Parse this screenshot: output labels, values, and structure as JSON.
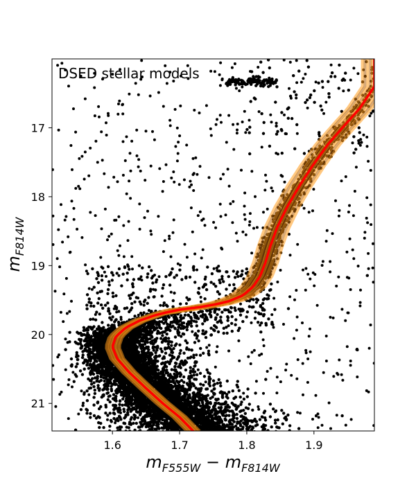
{
  "chart_data": {
    "type": "scatter",
    "title": "DSED stellar models",
    "xlabel": {
      "main": "m",
      "sub1": "F555W",
      "minus": " − ",
      "main2": "m",
      "sub2": "F814W"
    },
    "ylabel": {
      "main": "m",
      "sub": "F814W"
    },
    "xlim": [
      1.51,
      1.99
    ],
    "ylim": [
      21.4,
      16.0
    ],
    "y_inverted": true,
    "grid": false,
    "x_ticks": [
      1.6,
      1.7,
      1.8,
      1.9
    ],
    "x_tick_labels": [
      "1.6",
      "1.7",
      "1.8",
      "1.9"
    ],
    "y_ticks": [
      17,
      18,
      19,
      20,
      21
    ],
    "y_tick_labels": [
      "17",
      "18",
      "19",
      "20",
      "21"
    ],
    "colors": {
      "points": "#000000",
      "model_band": "#ff9a1a",
      "model_band_dark": "#b5650d",
      "best_fit": "#ff0000"
    },
    "series": [
      {
        "type": "isochrone",
        "color": "#ff0000",
        "points": [
          [
            1.72,
            21.4
          ],
          [
            1.7,
            21.2
          ],
          [
            1.675,
            21.0
          ],
          [
            1.65,
            20.78
          ],
          [
            1.625,
            20.55
          ],
          [
            1.607,
            20.35
          ],
          [
            1.6,
            20.18
          ],
          [
            1.605,
            20.03
          ],
          [
            1.62,
            19.9
          ],
          [
            1.64,
            19.8
          ],
          [
            1.67,
            19.7
          ],
          [
            1.7,
            19.64
          ],
          [
            1.74,
            19.59
          ],
          [
            1.77,
            19.53
          ],
          [
            1.795,
            19.43
          ],
          [
            1.81,
            19.3
          ],
          [
            1.82,
            19.15
          ],
          [
            1.828,
            18.95
          ],
          [
            1.835,
            18.72
          ],
          [
            1.845,
            18.45
          ],
          [
            1.86,
            18.15
          ],
          [
            1.878,
            17.85
          ],
          [
            1.898,
            17.55
          ],
          [
            1.92,
            17.25
          ],
          [
            1.945,
            16.97
          ],
          [
            1.968,
            16.72
          ],
          [
            1.99,
            16.4
          ]
        ]
      }
    ],
    "scatter_features": {
      "horizontal_branch": {
        "x_range": [
          1.77,
          1.845
        ],
        "y": 16.33
      }
    }
  }
}
